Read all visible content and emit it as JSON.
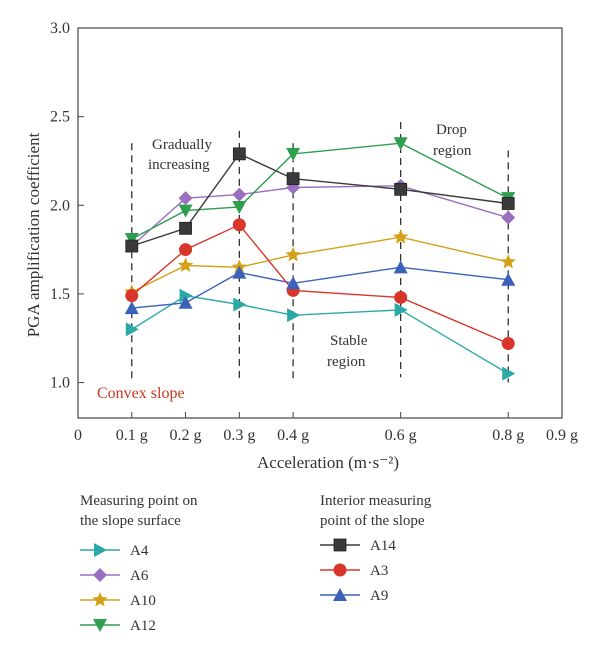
{
  "chart_data": {
    "type": "line",
    "x_tick_labels": [
      "0",
      "0.1 g",
      "0.2 g",
      "0.3 g",
      "0.4 g",
      "0.6 g",
      "0.8 g",
      "0.9 g"
    ],
    "x_tick_values": [
      0,
      0.1,
      0.2,
      0.3,
      0.4,
      0.6,
      0.8,
      0.9
    ],
    "xlim": [
      0,
      0.9
    ],
    "ylim": [
      0.8,
      3.0
    ],
    "y_ticks": [
      1.0,
      1.5,
      2.0,
      2.5,
      3.0
    ],
    "y_tick_labels": [
      "1.0",
      "1.5",
      "2.0",
      "2.5",
      "3.0"
    ],
    "xlabel": "Acceleration (m·s⁻²)",
    "ylabel": "PGA amplification coefficient",
    "panel_label": "Convex slope",
    "x": [
      0.1,
      0.2,
      0.3,
      0.4,
      0.6,
      0.8
    ],
    "series": [
      {
        "name": "A4",
        "marker": "triangle-right",
        "color": "#2aa9a6",
        "values": [
          1.3,
          1.49,
          1.44,
          1.38,
          1.41,
          1.05
        ]
      },
      {
        "name": "A6",
        "marker": "diamond",
        "color": "#9b6fbf",
        "values": [
          1.77,
          2.04,
          2.06,
          2.1,
          2.11,
          1.93
        ]
      },
      {
        "name": "A10",
        "marker": "star",
        "color": "#d4a017",
        "values": [
          1.51,
          1.66,
          1.65,
          1.72,
          1.82,
          1.68
        ]
      },
      {
        "name": "A12",
        "marker": "triangle-down",
        "color": "#2e9e4f",
        "values": [
          1.81,
          1.97,
          1.99,
          2.29,
          2.35,
          2.04
        ]
      },
      {
        "name": "A14",
        "marker": "square",
        "color": "#3a3a3a",
        "values": [
          1.77,
          1.87,
          2.29,
          2.15,
          2.09,
          2.01
        ]
      },
      {
        "name": "A3",
        "marker": "circle",
        "color": "#d9362b",
        "values": [
          1.49,
          1.75,
          1.89,
          1.52,
          1.48,
          1.22
        ]
      },
      {
        "name": "A9",
        "marker": "triangle-up",
        "color": "#3a62b8",
        "values": [
          1.42,
          1.45,
          1.62,
          1.56,
          1.65,
          1.58
        ]
      }
    ],
    "dividers": {
      "x": [
        0.1,
        0.3,
        0.4,
        0.6,
        0.8
      ],
      "y_ranges": [
        [
          1.0,
          2.35
        ],
        [
          1.0,
          2.42
        ],
        [
          1.0,
          2.35
        ],
        [
          1.03,
          2.47
        ],
        [
          1.0,
          2.31
        ]
      ]
    },
    "annotations": [
      {
        "lines": [
          "Gradually",
          "increasing"
        ]
      },
      {
        "lines": [
          "Stable",
          "region"
        ]
      },
      {
        "lines": [
          "Drop",
          "region"
        ]
      }
    ],
    "legend": {
      "group1_title": [
        "Measuring point on",
        "the slope surface"
      ],
      "group1": [
        "A4",
        "A6",
        "A10",
        "A12"
      ],
      "group2_title": [
        "Interior measuring",
        "point of the slope"
      ],
      "group2": [
        "A14",
        "A3",
        "A9"
      ]
    }
  }
}
